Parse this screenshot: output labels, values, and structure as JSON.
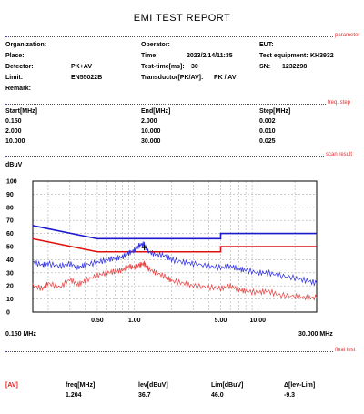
{
  "title": "EMI TEST REPORT",
  "sections": {
    "parameter": "parameter",
    "freq_step": "freq. step",
    "scan_result": "scan result",
    "final_test": "final test"
  },
  "params": {
    "organization": "Organization:",
    "place": "Place:",
    "detector_label": "Detector:",
    "detector_value": "PK+AV",
    "limit_label": "Limit:",
    "limit_value": "EN55022B",
    "remark": "Remark:",
    "operator": "Operator:",
    "time_label": "Time:",
    "time_value": "2023/2/14/11:35",
    "testtime_label": "Test-time[ms]:",
    "testtime_value": "30",
    "transductor_label": "Transductor[PK/AV]:",
    "transductor_value": "PK  /  AV",
    "eut": "EUT:",
    "equipment_label": "Test equipment:",
    "equipment_value": "KH3932",
    "sn_label": "SN:",
    "sn_value": "1232298"
  },
  "freq_table": {
    "headers": [
      "Start[MHz]",
      "End[MHz]",
      "Step[MHz]"
    ],
    "rows": [
      [
        "0.150",
        "2.000",
        "0.002"
      ],
      [
        "2.000",
        "10.000",
        "0.010"
      ],
      [
        "10.000",
        "30.000",
        "0.025"
      ]
    ]
  },
  "chart_data": {
    "type": "line",
    "title": "",
    "ylabel": "dBuV",
    "xlabel": "",
    "x_scale": "log",
    "xlim": [
      0.15,
      30
    ],
    "ylim": [
      0,
      100
    ],
    "y_ticks": [
      "100",
      "90",
      "80",
      "70",
      "60",
      "50",
      "40",
      "30",
      "20",
      "10",
      "0"
    ],
    "x_tick_labels": [
      "0.50",
      "1.00",
      "5.00",
      "10.00"
    ],
    "x_tick_values": [
      0.5,
      1.0,
      5.0,
      10.0
    ],
    "x_start_label": "0.150 MHz",
    "x_end_label": "30.000 MHz",
    "grid": true,
    "limit_lines": [
      {
        "color": "#1a1acc",
        "x": [
          0.15,
          0.5,
          5.0,
          5.0,
          30.0
        ],
        "y": [
          66,
          56,
          56,
          60,
          60
        ]
      },
      {
        "color": "#e01010",
        "x": [
          0.15,
          0.5,
          5.0,
          5.0,
          30.0
        ],
        "y": [
          56,
          46,
          46,
          50,
          50
        ]
      }
    ],
    "series": [
      {
        "color": "#2a2ae0",
        "x": [
          0.15,
          0.18,
          0.2,
          0.25,
          0.3,
          0.35,
          0.4,
          0.5,
          0.6,
          0.7,
          0.8,
          0.9,
          1.0,
          1.1,
          1.2,
          1.3,
          1.5,
          1.8,
          2.0,
          2.5,
          3.0,
          4.0,
          5.0,
          6.0,
          7.0,
          8.0,
          10.0,
          12.0,
          15.0,
          20.0,
          25.0,
          30.0
        ],
        "y": [
          38,
          36,
          37,
          35,
          37,
          34,
          36,
          38,
          40,
          41,
          42,
          45,
          47,
          51,
          52,
          46,
          44,
          43,
          40,
          38,
          37,
          35,
          34,
          35,
          33,
          32,
          30,
          30,
          28,
          26,
          24,
          22
        ]
      },
      {
        "color": "#e84040",
        "x": [
          0.15,
          0.18,
          0.2,
          0.25,
          0.3,
          0.35,
          0.4,
          0.5,
          0.6,
          0.7,
          0.8,
          0.9,
          1.0,
          1.1,
          1.2,
          1.3,
          1.5,
          1.8,
          2.0,
          2.5,
          3.0,
          4.0,
          5.0,
          6.0,
          7.0,
          8.0,
          10.0,
          12.0,
          15.0,
          20.0,
          25.0,
          30.0
        ],
        "y": [
          20,
          18,
          22,
          19,
          25,
          21,
          24,
          28,
          30,
          31,
          32,
          35,
          34,
          36,
          37,
          33,
          30,
          27,
          24,
          22,
          20,
          19,
          18,
          20,
          17,
          16,
          15,
          16,
          13,
          12,
          11,
          11
        ]
      }
    ],
    "marker": {
      "x": 1.204,
      "y": 36.7
    }
  },
  "final_test": {
    "detector": "[AV]",
    "headers": [
      "freq[MHz]",
      "lev[dBuV]",
      "Lim[dBuV]",
      "Δ[lev-Lim]"
    ],
    "row": [
      "1.204",
      "36.7",
      "46.0",
      "-9.3"
    ]
  }
}
